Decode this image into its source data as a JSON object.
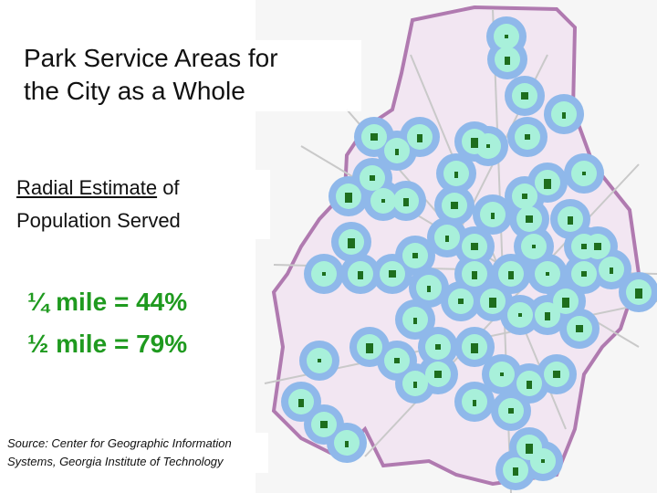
{
  "title_line1": "Park Service Areas for",
  "title_line2": "the City as a Whole",
  "subtitle": {
    "underlined": "Radial Estimate",
    "rest_line1": " of",
    "line2": "Population Served"
  },
  "stats": [
    {
      "label": "¼ mile = 44%"
    },
    {
      "label": "½ mile = 79%"
    }
  ],
  "source_line1": "Source: Center for Geographic Information",
  "source_line2": "Systems, Georgia Institute of Technology",
  "colors": {
    "stat_text": "#1f9a1f",
    "half_mile_buffer": "#8fb8ea",
    "quarter_mile_buffer": "#a8f0da",
    "park": "#1e6e1e",
    "city_boundary": "#b07ab0",
    "city_fill": "#f2e6f2",
    "roads": "#c9c9c9"
  }
}
